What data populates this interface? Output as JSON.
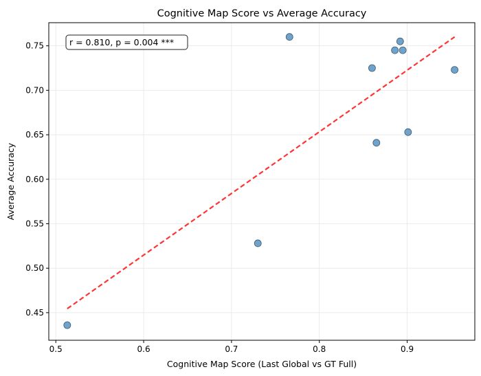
{
  "chart_data": {
    "type": "scatter",
    "title": "Cognitive Map Score vs Average Accuracy",
    "xlabel": "Cognitive Map Score (Last Global vs GT Full)",
    "ylabel": "Average Accuracy",
    "xlim": [
      0.492,
      0.977
    ],
    "ylim": [
      0.419,
      0.776
    ],
    "xticks": [
      0.5,
      0.6,
      0.7,
      0.8,
      0.9
    ],
    "xtick_labels": [
      "0.5",
      "0.6",
      "0.7",
      "0.8",
      "0.9"
    ],
    "yticks": [
      0.45,
      0.5,
      0.55,
      0.6,
      0.65,
      0.7,
      0.75
    ],
    "ytick_labels": [
      "0.45",
      "0.50",
      "0.55",
      "0.60",
      "0.65",
      "0.70",
      "0.75"
    ],
    "grid": true,
    "points": [
      {
        "x": 0.513,
        "y": 0.436
      },
      {
        "x": 0.73,
        "y": 0.528
      },
      {
        "x": 0.766,
        "y": 0.76
      },
      {
        "x": 0.86,
        "y": 0.725
      },
      {
        "x": 0.865,
        "y": 0.641
      },
      {
        "x": 0.886,
        "y": 0.745
      },
      {
        "x": 0.892,
        "y": 0.755
      },
      {
        "x": 0.895,
        "y": 0.745
      },
      {
        "x": 0.901,
        "y": 0.653
      },
      {
        "x": 0.954,
        "y": 0.723
      }
    ],
    "fit_line": {
      "x": [
        0.513,
        0.954
      ],
      "y": [
        0.4545,
        0.76
      ],
      "style": "dashed"
    },
    "annotation": "r = 0.810, p = 0.004 ***",
    "colors": {
      "points": "#6fa3cc",
      "point_edge": "#3f5a70",
      "fit_line": "#ff3333"
    }
  }
}
